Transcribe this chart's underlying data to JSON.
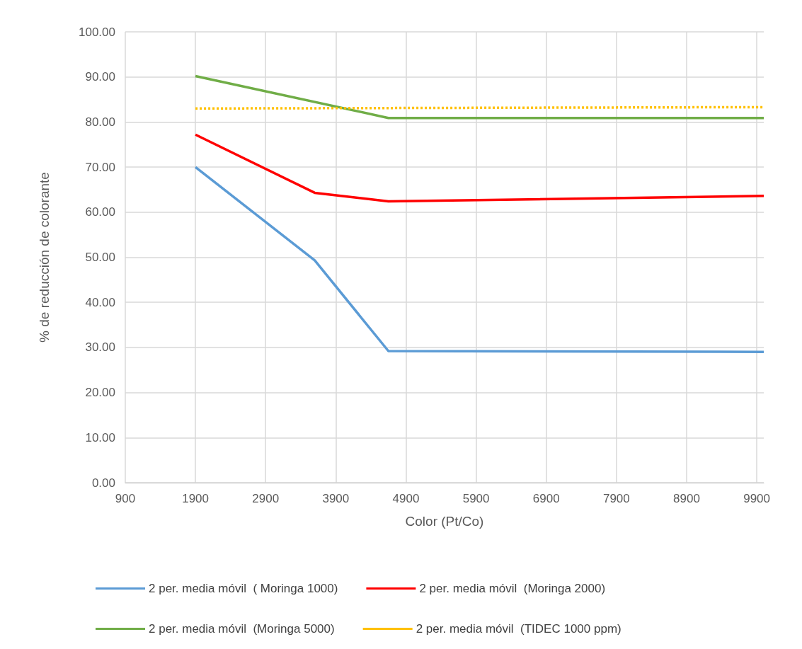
{
  "chart_data": {
    "type": "line",
    "xlabel": "Color (Pt/Co)",
    "ylabel": "% de reducción de colorante",
    "xlim": [
      900,
      10000
    ],
    "xticks": [
      900,
      1900,
      2900,
      3900,
      4900,
      5900,
      6900,
      7900,
      8900,
      9900
    ],
    "ylim": [
      0,
      100
    ],
    "yticks": [
      {
        "value": 0,
        "label": "0.00"
      },
      {
        "value": 10,
        "label": "10.00"
      },
      {
        "value": 20,
        "label": "20.00"
      },
      {
        "value": 30,
        "label": "30.00"
      },
      {
        "value": 40,
        "label": "40.00"
      },
      {
        "value": 50,
        "label": "50.00"
      },
      {
        "value": 60,
        "label": "60.00"
      },
      {
        "value": 70,
        "label": "70.00"
      },
      {
        "value": 80,
        "label": "80.00"
      },
      {
        "value": 90,
        "label": "90.00"
      },
      {
        "value": 100,
        "label": "100.00"
      }
    ],
    "grid": true,
    "legend": "bottom",
    "marker": "none",
    "series": [
      {
        "name": "2 per. media móvil  ( Moringa 1000)",
        "color": "#5b9bd5",
        "line_style": "solid",
        "x": [
          1900,
          3600,
          4650,
          10000
        ],
        "values": [
          70.0,
          49.3,
          29.2,
          29.0
        ]
      },
      {
        "name": "2 per. media móvil  (Moringa 2000)",
        "color": "#ff0000",
        "line_style": "solid",
        "x": [
          1900,
          3600,
          4650,
          10000
        ],
        "values": [
          77.2,
          64.3,
          62.4,
          63.6
        ]
      },
      {
        "name": "2 per. media móvil  (Moringa 5000)",
        "color": "#70ad47",
        "line_style": "solid",
        "x": [
          1900,
          4650,
          10000
        ],
        "values": [
          90.2,
          80.9,
          80.9
        ]
      },
      {
        "name": "2 per. media móvil  (TIDEC 1000 ppm)",
        "color": "#ffc000",
        "line_style": "dotted",
        "x": [
          1900,
          10000
        ],
        "values": [
          83.0,
          83.3
        ]
      }
    ]
  }
}
